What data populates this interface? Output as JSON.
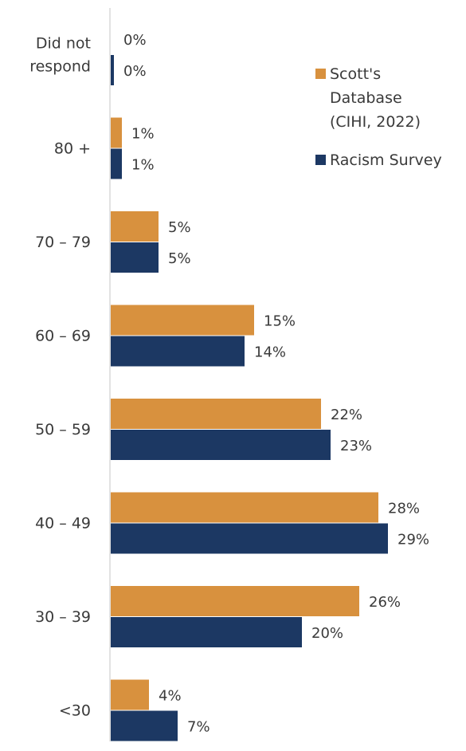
{
  "chart_data": {
    "type": "bar",
    "orientation": "horizontal",
    "categories": [
      "Did not respond",
      "80 +",
      "70 – 79",
      "60 – 69",
      "50 – 59",
      "40 – 49",
      "30 – 39",
      "<30"
    ],
    "category_lines": [
      [
        "Did not",
        "respond"
      ],
      [
        "80 +"
      ],
      [
        "70 – 79"
      ],
      [
        "60 – 69"
      ],
      [
        "50 – 59"
      ],
      [
        "40 – 49"
      ],
      [
        "30 – 39"
      ],
      [
        "<30"
      ]
    ],
    "series": [
      {
        "name": "Scott's Database (CIHI, 2022)",
        "color": "#d8913e",
        "values": [
          0,
          1,
          5,
          15,
          22,
          28,
          26,
          4
        ],
        "labels": [
          "0%",
          "1%",
          "5%",
          "15%",
          "22%",
          "28%",
          "26%",
          "4%"
        ]
      },
      {
        "name": "Racism Survey",
        "color": "#1c3863",
        "values": [
          0,
          1,
          5,
          14,
          23,
          29,
          20,
          7
        ],
        "labels": [
          "0%",
          "1%",
          "5%",
          "14%",
          "23%",
          "29%",
          "20%",
          "7%"
        ]
      }
    ],
    "xlim": [
      0,
      29
    ],
    "grid": false,
    "legend_position": "right"
  },
  "legend": {
    "items": [
      {
        "label": "Scott's\nDatabase\n(CIHI, 2022)",
        "color": "#d8913e"
      },
      {
        "label": "Racism Survey",
        "color": "#1c3863"
      }
    ]
  }
}
